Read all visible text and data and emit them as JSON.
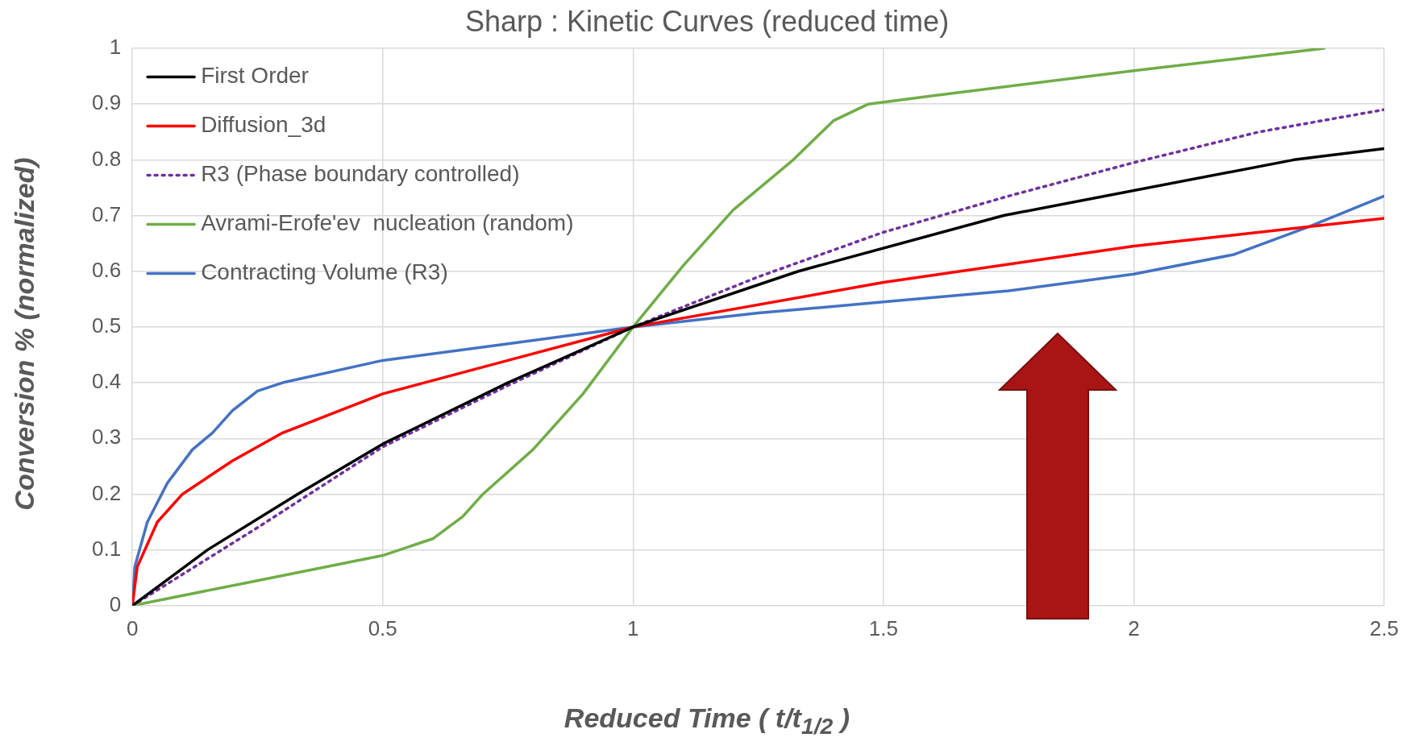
{
  "chart_data": {
    "type": "line",
    "title": "Sharp : Kinetic Curves (reduced time)",
    "xlabel": "Reduced Time ( t/t$_{1/2}$ )",
    "ylabel": "Conversion % (normalized)",
    "xlim": [
      0,
      2.5
    ],
    "xticks": [
      0,
      0.5,
      1,
      1.5,
      2,
      2.5
    ],
    "ylim": [
      0,
      1
    ],
    "yticks": [
      0,
      0.1,
      0.2,
      0.3,
      0.4,
      0.5,
      0.6,
      0.7,
      0.8,
      0.9,
      1
    ],
    "grid": true,
    "legend": "top left",
    "marker": "none",
    "series": [
      {
        "name": "First Order",
        "color": "#000000",
        "x": [
          0,
          0.15,
          0.33,
          0.5,
          0.75,
          1,
          1.33,
          1.74,
          2.32,
          2.5
        ],
        "values": [
          0,
          0.1,
          0.2,
          0.29,
          0.4,
          0.5,
          0.6,
          0.7,
          0.8,
          0.82
        ]
      },
      {
        "name": "Diffusion_3d",
        "color": "#ff0000",
        "x": [
          0,
          0.01,
          0.05,
          0.1,
          0.2,
          0.3,
          0.5,
          0.75,
          1,
          1.5,
          2,
          2.5
        ],
        "values": [
          0,
          0.07,
          0.15,
          0.2,
          0.26,
          0.31,
          0.38,
          0.44,
          0.5,
          0.58,
          0.645,
          0.695
        ]
      },
      {
        "name": "R3 (Phase boundary controlled)",
        "color": "#7030a0",
        "line_style": "dotted",
        "x": [
          0,
          0.25,
          0.5,
          0.75,
          1,
          1.25,
          1.5,
          1.75,
          2,
          2.25,
          2.5
        ],
        "values": [
          0,
          0.14,
          0.285,
          0.395,
          0.5,
          0.59,
          0.67,
          0.735,
          0.795,
          0.85,
          0.89
        ]
      },
      {
        "name": "Avrami-Erofe'ev  nucleation (random)",
        "color": "#70ad47",
        "x": [
          0,
          0.25,
          0.5,
          0.6,
          0.66,
          0.7,
          0.8,
          0.9,
          1,
          1.1,
          1.2,
          1.32,
          1.4,
          1.47,
          1.6,
          2,
          2.38
        ],
        "values": [
          0,
          0.045,
          0.09,
          0.12,
          0.16,
          0.2,
          0.28,
          0.38,
          0.5,
          0.61,
          0.71,
          0.8,
          0.87,
          0.9,
          0.915,
          0.96,
          1
        ]
      },
      {
        "name": "Contracting Volume (R3)",
        "color": "#4472c4",
        "x": [
          0,
          0.005,
          0.03,
          0.07,
          0.12,
          0.16,
          0.2,
          0.25,
          0.3,
          0.5,
          0.75,
          1,
          1.25,
          1.5,
          1.75,
          2,
          2.2,
          2.35,
          2.5
        ],
        "values": [
          0,
          0.07,
          0.15,
          0.22,
          0.28,
          0.31,
          0.35,
          0.385,
          0.4,
          0.44,
          0.47,
          0.5,
          0.525,
          0.545,
          0.565,
          0.595,
          0.63,
          0.68,
          0.735
        ]
      }
    ]
  }
}
